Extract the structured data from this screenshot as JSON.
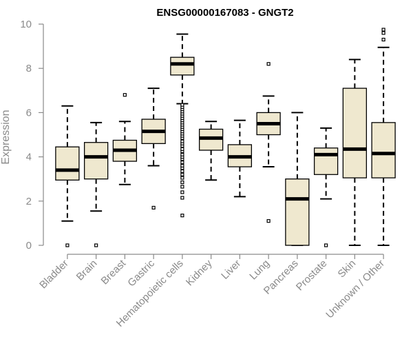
{
  "chart_data": {
    "type": "boxplot",
    "title": "ENSG00000167083 - GNGT2",
    "xlabel": "",
    "ylabel": "Expression",
    "ylim": [
      0,
      10
    ],
    "yticks": [
      0,
      2,
      4,
      6,
      8,
      10
    ],
    "categories": [
      "Bladder",
      "Brain",
      "Breast",
      "Gastric",
      "Hematopoietic cells",
      "Kidney",
      "Liver",
      "Lung",
      "Pancreas",
      "Prostate",
      "Skin",
      "Unknown / Other"
    ],
    "boxes": [
      {
        "name": "Bladder",
        "whisker_low": 1.1,
        "q1": 2.95,
        "median": 3.4,
        "q3": 4.45,
        "whisker_high": 6.3,
        "outliers": [
          0.0
        ]
      },
      {
        "name": "Brain",
        "whisker_low": 1.55,
        "q1": 3.0,
        "median": 4.0,
        "q3": 4.65,
        "whisker_high": 5.55,
        "outliers": [
          0.0
        ]
      },
      {
        "name": "Breast",
        "whisker_low": 2.75,
        "q1": 3.8,
        "median": 4.3,
        "q3": 4.75,
        "whisker_high": 5.6,
        "outliers": [
          6.8
        ]
      },
      {
        "name": "Gastric",
        "whisker_low": 3.6,
        "q1": 4.6,
        "median": 5.15,
        "q3": 5.7,
        "whisker_high": 7.1,
        "outliers": [
          1.7
        ]
      },
      {
        "name": "Hematopoietic cells",
        "whisker_low": 6.4,
        "q1": 7.7,
        "median": 8.2,
        "q3": 8.5,
        "whisker_high": 9.55,
        "outliers": [
          1.35,
          2.15,
          2.4,
          2.65,
          2.85,
          3.05,
          3.2,
          3.35,
          3.5,
          3.6,
          3.75,
          3.9,
          4.0,
          4.1,
          4.25,
          4.35,
          4.5,
          4.6,
          4.7,
          4.85,
          4.95,
          5.05,
          5.15,
          5.25,
          5.35,
          5.45,
          5.55,
          5.65,
          5.75,
          5.85,
          5.95,
          6.05,
          6.15,
          6.25,
          6.35
        ]
      },
      {
        "name": "Kidney",
        "whisker_low": 2.95,
        "q1": 4.3,
        "median": 4.85,
        "q3": 5.25,
        "whisker_high": 5.6,
        "outliers": []
      },
      {
        "name": "Liver",
        "whisker_low": 2.2,
        "q1": 3.55,
        "median": 4.0,
        "q3": 4.55,
        "whisker_high": 5.65,
        "outliers": []
      },
      {
        "name": "Lung",
        "whisker_low": 3.55,
        "q1": 5.0,
        "median": 5.5,
        "q3": 6.0,
        "whisker_high": 6.75,
        "outliers": [
          1.1,
          8.2
        ]
      },
      {
        "name": "Pancreas",
        "whisker_low": 0.0,
        "q1": 0.0,
        "median": 2.1,
        "q3": 3.0,
        "whisker_high": 6.0,
        "outliers": []
      },
      {
        "name": "Prostate",
        "whisker_low": 2.1,
        "q1": 3.2,
        "median": 4.1,
        "q3": 4.4,
        "whisker_high": 5.3,
        "outliers": [
          0.0
        ]
      },
      {
        "name": "Skin",
        "whisker_low": 0.0,
        "q1": 3.05,
        "median": 4.35,
        "q3": 7.1,
        "whisker_high": 8.4,
        "outliers": []
      },
      {
        "name": "Unknown / Other",
        "whisker_low": 0.0,
        "q1": 3.05,
        "median": 4.15,
        "q3": 5.55,
        "whisker_high": 8.95,
        "outliers": [
          9.3,
          9.6,
          9.75
        ]
      }
    ],
    "colors": {
      "box_fill": "#efe8cf",
      "box_stroke": "#000000",
      "axis": "#8a8a8a",
      "title": "#000000"
    },
    "grid": false,
    "legend": "none"
  }
}
